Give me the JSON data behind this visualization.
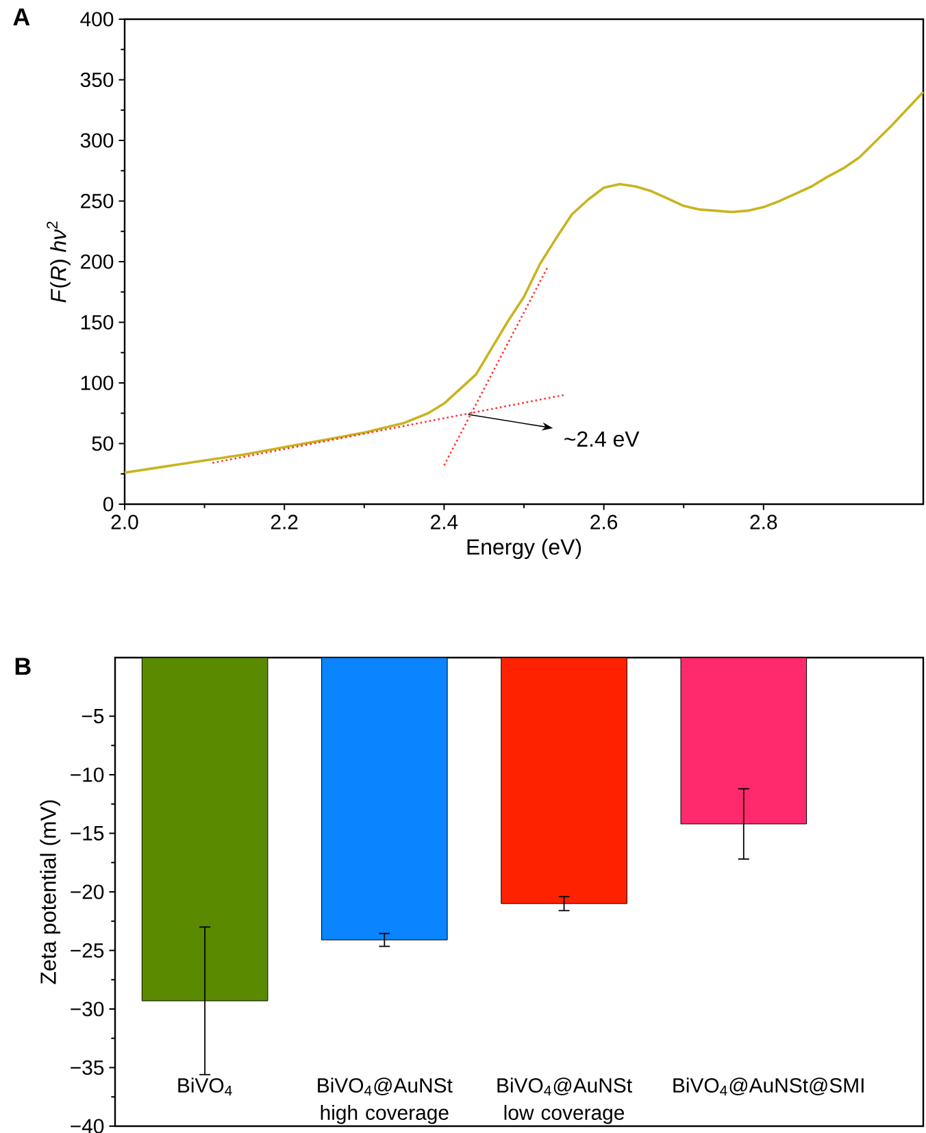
{
  "chart_data": [
    {
      "type": "line",
      "title": "A",
      "xlabel": "Energy (eV)",
      "ylabel": "*F*(*R*) *hν*$^{2}$",
      "xlim": [
        2,
        3
      ],
      "ylim": [
        0,
        400
      ],
      "xticks": [
        {
          "value": 2,
          "label": "2.0"
        },
        {
          "value": 2.2,
          "label": "2.2"
        },
        {
          "value": 2.4,
          "label": "2.4"
        },
        {
          "value": 2.6,
          "label": "2.6"
        },
        {
          "value": 2.8,
          "label": "2.8"
        }
      ],
      "yticks": [
        0,
        50,
        100,
        150,
        200,
        250,
        300,
        350,
        400
      ],
      "annotations": [
        {
          "text": "~2.4 eV",
          "x": 2.43,
          "y": 74
        }
      ],
      "series": [
        {
          "color": "#c8b41e",
          "line_style": "solid",
          "x": [
            2.0,
            2.05,
            2.1,
            2.15,
            2.2,
            2.25,
            2.3,
            2.35,
            2.38,
            2.4,
            2.42,
            2.44,
            2.46,
            2.48,
            2.5,
            2.52,
            2.54,
            2.56,
            2.58,
            2.6,
            2.62,
            2.64,
            2.66,
            2.68,
            2.7,
            2.72,
            2.74,
            2.76,
            2.78,
            2.8,
            2.82,
            2.84,
            2.86,
            2.88,
            2.9,
            2.92,
            2.94,
            2.96,
            2.98,
            3.0
          ],
          "values": [
            26,
            31,
            36,
            41,
            47,
            53,
            59,
            67,
            75,
            83,
            95,
            107,
            129,
            151,
            171,
            198,
            219,
            239,
            251,
            261,
            264,
            262,
            258,
            252,
            246,
            243,
            242,
            241,
            242,
            245,
            250,
            256,
            262,
            270,
            277,
            286,
            299,
            312,
            326,
            340
          ]
        },
        {
          "color": "#ff3030",
          "line_style": "dotted",
          "x": [
            2.11,
            2.55
          ],
          "values": [
            34,
            90
          ]
        },
        {
          "color": "#ff3030",
          "line_style": "dotted",
          "x": [
            2.4,
            2.53
          ],
          "values": [
            32,
            196
          ]
        }
      ]
    },
    {
      "type": "bar",
      "title": "B",
      "ylabel": "Zeta potential (mV)",
      "categories": [
        "BiVO$_{4}$",
        "BiVO$_{4}$@AuNSt high coverage",
        "BiVO$_{4}$@AuNSt low coverage",
        "BiVO$_{4}$@AuNSt@SMI"
      ],
      "values": [
        -29.3,
        -24.1,
        -21,
        -14.2
      ],
      "errors": [
        6.3,
        0.55,
        0.6,
        3
      ],
      "colors": [
        "#5a8a00",
        "#0a85ff",
        "#ff2200",
        "#ff2a6e"
      ],
      "ylim": [
        -40,
        0
      ],
      "yticks": [
        {
          "value": -40,
          "label": "−40"
        },
        {
          "value": -35,
          "label": "−35"
        },
        {
          "value": -30,
          "label": "−30"
        },
        {
          "value": -25,
          "label": "−25"
        },
        {
          "value": -20,
          "label": "−20"
        },
        {
          "value": -15,
          "label": "−15"
        },
        {
          "value": -10,
          "label": "−10"
        },
        {
          "value": -5,
          "label": "−5"
        }
      ]
    }
  ]
}
